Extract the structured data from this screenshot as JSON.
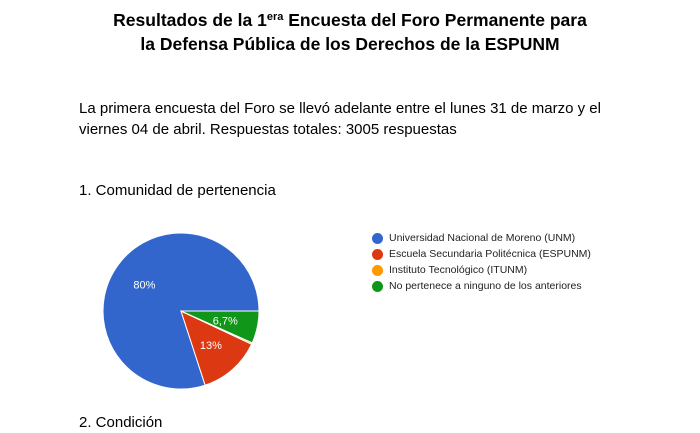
{
  "document": {
    "title_line1_before_sup": "Resultados de la 1",
    "title_line1_sup": "era",
    "title_line1_after_sup": " Encuesta del Foro Permanente para",
    "title_line2": "la Defensa Pública de los Derechos de la ESPUNM",
    "intro": "La primera encuesta del Foro se llevó adelante entre el lunes 31 de marzo y el viernes 04 de abril. Respuestas totales: 3005 respuestas",
    "section1_heading": "1. Comunidad de pertenencia",
    "section2_heading_partial": "2. Condición"
  },
  "chart_data": {
    "type": "pie",
    "categories": [
      "Universidad Nacional de Moreno (UNM)",
      "Escuela Secundaria Politécnica (ESPUNM)",
      "Instituto Tecnológico (ITUNM)",
      "No pertenece a ninguno de los anteriores"
    ],
    "values": [
      80,
      13,
      0.3,
      6.7
    ],
    "data_labels": [
      "80%",
      "13%",
      "",
      "6,7%"
    ],
    "colors": [
      "#3366cc",
      "#dc3912",
      "#ff9900",
      "#109618"
    ],
    "legend_placement": "right",
    "start": "3 o'clock, counterclockwise"
  }
}
